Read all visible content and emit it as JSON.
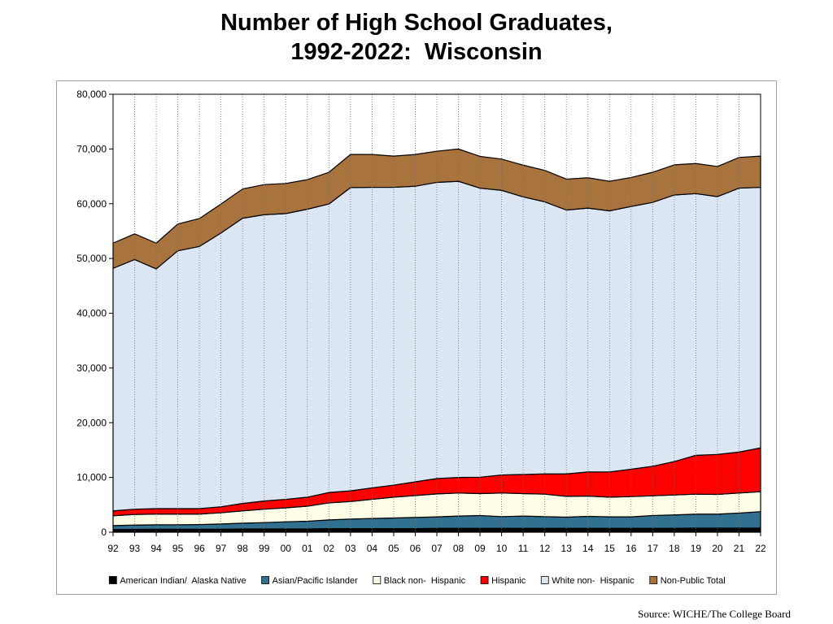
{
  "title_line1": "Number of High School Graduates,",
  "title_line2": "1992-2022:  Wisconsin",
  "source": "Source: WICHE/The College Board",
  "chart_data": {
    "type": "area",
    "stacked": true,
    "title": "Number of High School Graduates, 1992-2022: Wisconsin",
    "categories": [
      "92",
      "93",
      "94",
      "95",
      "96",
      "97",
      "98",
      "99",
      "00",
      "01",
      "02",
      "03",
      "04",
      "05",
      "06",
      "07",
      "08",
      "09",
      "10",
      "11",
      "12",
      "13",
      "14",
      "15",
      "16",
      "17",
      "18",
      "19",
      "20",
      "21",
      "22"
    ],
    "ylim": [
      0,
      80000
    ],
    "yticks": [
      0,
      10000,
      20000,
      30000,
      40000,
      50000,
      60000,
      70000,
      80000
    ],
    "ytick_labels": [
      "0",
      "10,000",
      "20,000",
      "30,000",
      "40,000",
      "50,000",
      "60,000",
      "70,000",
      "80,000"
    ],
    "grid_x": true,
    "legend_position": "bottom",
    "series": [
      {
        "name": "American Indian/  Alaska Native",
        "color": "#000000",
        "values": [
          500,
          500,
          550,
          550,
          550,
          550,
          600,
          600,
          600,
          600,
          650,
          650,
          650,
          650,
          650,
          700,
          700,
          700,
          700,
          700,
          700,
          700,
          700,
          700,
          700,
          700,
          700,
          750,
          750,
          750,
          750
        ]
      },
      {
        "name": "Asian/Pacific Islander",
        "color": "#31708f",
        "values": [
          700,
          800,
          800,
          800,
          850,
          950,
          1050,
          1150,
          1300,
          1400,
          1600,
          1750,
          1850,
          1950,
          2050,
          2100,
          2250,
          2350,
          2150,
          2250,
          2150,
          2050,
          2200,
          2100,
          2100,
          2350,
          2450,
          2550,
          2550,
          2750,
          3000
        ]
      },
      {
        "name": "Black non-  Hispanic",
        "color": "#ffffe8",
        "values": [
          1800,
          1950,
          1950,
          1950,
          1900,
          2050,
          2250,
          2450,
          2550,
          2750,
          3100,
          3200,
          3500,
          3800,
          4000,
          4200,
          4200,
          4000,
          4300,
          4100,
          4100,
          3800,
          3700,
          3600,
          3700,
          3600,
          3650,
          3650,
          3600,
          3650,
          3650
        ]
      },
      {
        "name": "Hispanic",
        "color": "#ff0000",
        "values": [
          900,
          950,
          1000,
          1000,
          1000,
          1100,
          1350,
          1500,
          1550,
          1650,
          1900,
          1950,
          2100,
          2200,
          2500,
          2800,
          2850,
          3000,
          3300,
          3500,
          3700,
          4100,
          4400,
          4600,
          5000,
          5400,
          6100,
          7100,
          7300,
          7500,
          8000
        ]
      },
      {
        "name": "White non-  Hispanic",
        "color": "#dce6f2",
        "values": [
          44300,
          45600,
          43800,
          47100,
          47900,
          50000,
          52100,
          52300,
          52200,
          52600,
          52700,
          55400,
          54900,
          54400,
          54000,
          54100,
          54100,
          52800,
          52000,
          50700,
          49700,
          48200,
          48200,
          47700,
          48000,
          48200,
          48700,
          47800,
          47100,
          48200,
          47600
        ]
      },
      {
        "name": "Non-Public Total",
        "color": "#a9733d",
        "values": [
          4600,
          4700,
          4700,
          4900,
          5100,
          5300,
          5350,
          5500,
          5500,
          5400,
          5800,
          6050,
          6000,
          5700,
          5800,
          5700,
          5900,
          5800,
          5700,
          5800,
          5750,
          5650,
          5550,
          5400,
          5300,
          5500,
          5500,
          5500,
          5500,
          5600,
          5700
        ]
      }
    ]
  }
}
